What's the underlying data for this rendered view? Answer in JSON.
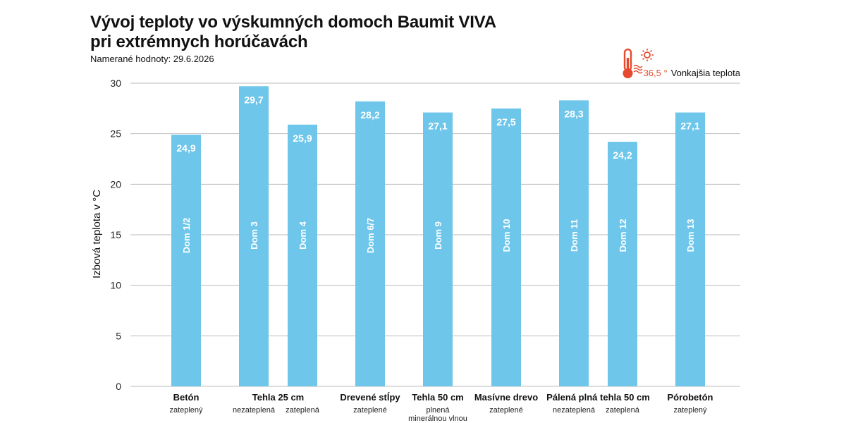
{
  "header": {
    "title_line1": "Vývoj teploty vo výskumných domoch Baumit VIVA",
    "title_line2": "pri extrémnych horúčavách",
    "subtitle": "Namerané hodnoty: 29.6.2026"
  },
  "legend": {
    "value": "36,5 °",
    "label": "Vonkajšia teplota",
    "icon": "thermometer-sun-icon"
  },
  "colors": {
    "bar": "#6ec6ea",
    "grid": "#bbbbbb",
    "accent": "#e64a2e"
  },
  "chart_data": {
    "type": "bar",
    "ylabel": "Izbová teplota v °C",
    "ylim": [
      0,
      30
    ],
    "yticks": [
      0,
      5,
      10,
      15,
      20,
      25,
      30
    ],
    "grid": true,
    "bars": [
      {
        "label": "Dom 1/2",
        "value": 24.9,
        "value_label": "24,9"
      },
      {
        "label": "Dom 3",
        "value": 29.7,
        "value_label": "29,7"
      },
      {
        "label": "Dom 4",
        "value": 25.9,
        "value_label": "25,9"
      },
      {
        "label": "Dom 6/7",
        "value": 28.2,
        "value_label": "28,2"
      },
      {
        "label": "Dom 9",
        "value": 27.1,
        "value_label": "27,1"
      },
      {
        "label": "Dom 10",
        "value": 27.5,
        "value_label": "27,5"
      },
      {
        "label": "Dom 11",
        "value": 28.3,
        "value_label": "28,3"
      },
      {
        "label": "Dom 12",
        "value": 24.2,
        "value_label": "24,2"
      },
      {
        "label": "Dom 13",
        "value": 27.1,
        "value_label": "27,1"
      }
    ],
    "groups": [
      {
        "name": "Betón",
        "bars": [
          0
        ],
        "subs": [
          "zateplený"
        ]
      },
      {
        "name": "Tehla 25 cm",
        "bars": [
          1,
          2
        ],
        "subs": [
          "nezateplená",
          "zateplená"
        ]
      },
      {
        "name": "Drevené stĺpy",
        "bars": [
          3
        ],
        "subs": [
          "zateplené"
        ]
      },
      {
        "name": "Tehla 50 cm",
        "bars": [
          4
        ],
        "subs": [
          "plnená\nminerálnou vlnou"
        ]
      },
      {
        "name": "Masívne drevo",
        "bars": [
          5
        ],
        "subs": [
          "zateplené"
        ]
      },
      {
        "name": "Pálená plná tehla 50 cm",
        "bars": [
          6,
          7
        ],
        "subs": [
          "nezateplená",
          "zateplená"
        ]
      },
      {
        "name": "Pórobetón",
        "bars": [
          8
        ],
        "subs": [
          "zateplený"
        ]
      }
    ]
  }
}
